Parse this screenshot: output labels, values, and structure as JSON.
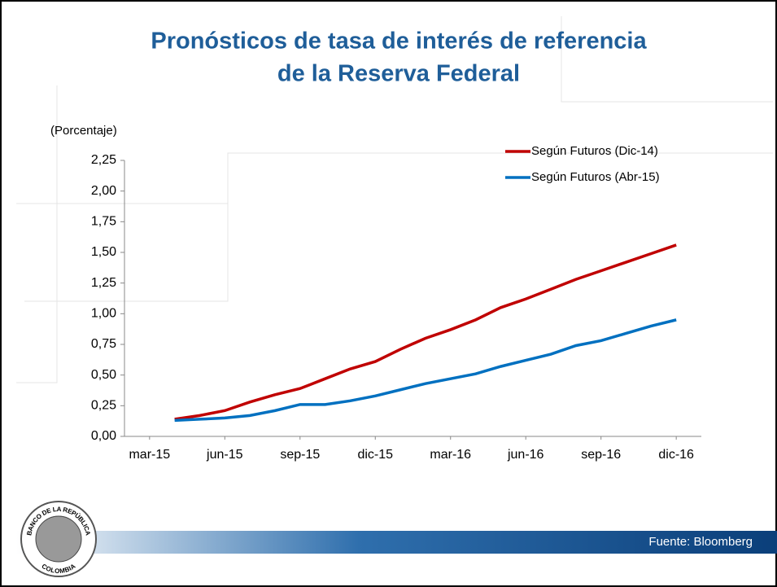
{
  "title_line1": "Pronósticos de tasa de interés de referencia",
  "title_line2": "de la Reserva Federal",
  "source": "Fuente: Bloomberg",
  "logo_top": "BANCO DE LA REPÚBLICA",
  "logo_bottom": "COLOMBIA",
  "chart_data": {
    "type": "line",
    "ylabel": "(Porcentaje)",
    "x": [
      "2015-04",
      "2015-05",
      "2015-06",
      "2015-07",
      "2015-08",
      "2015-09",
      "2015-10",
      "2015-11",
      "2015-12",
      "2016-01",
      "2016-02",
      "2016-03",
      "2016-04",
      "2016-05",
      "2016-06",
      "2016-07",
      "2016-08",
      "2016-09",
      "2016-10",
      "2016-11",
      "2016-12"
    ],
    "series": [
      {
        "name": "Según Futuros (Dic-14)",
        "color": "#c00000",
        "values": [
          0.14,
          0.17,
          0.21,
          0.28,
          0.34,
          0.39,
          0.47,
          0.55,
          0.61,
          0.71,
          0.8,
          0.87,
          0.95,
          1.05,
          1.12,
          1.2,
          1.28,
          1.35,
          1.42,
          1.49,
          1.56
        ]
      },
      {
        "name": "Según Futuros (Abr-15)",
        "color": "#0070c0",
        "values": [
          0.13,
          0.14,
          0.15,
          0.17,
          0.21,
          0.26,
          0.26,
          0.29,
          0.33,
          0.38,
          0.43,
          0.47,
          0.51,
          0.57,
          0.62,
          0.67,
          0.74,
          0.78,
          0.84,
          0.9,
          0.95
        ]
      }
    ],
    "xlim": [
      "2015-02",
      "2017-01"
    ],
    "xticks": [
      {
        "value": "2015-03",
        "label": "mar-15"
      },
      {
        "value": "2015-06",
        "label": "jun-15"
      },
      {
        "value": "2015-09",
        "label": "sep-15"
      },
      {
        "value": "2015-12",
        "label": "dic-15"
      },
      {
        "value": "2016-03",
        "label": "mar-16"
      },
      {
        "value": "2016-06",
        "label": "jun-16"
      },
      {
        "value": "2016-09",
        "label": "sep-16"
      },
      {
        "value": "2016-12",
        "label": "dic-16"
      }
    ],
    "ylim": [
      0,
      2.25
    ],
    "yticks": [
      {
        "value": 0,
        "label": "0,00"
      },
      {
        "value": 0.25,
        "label": "0,25"
      },
      {
        "value": 0.5,
        "label": "0,50"
      },
      {
        "value": 0.75,
        "label": "0,75"
      },
      {
        "value": 1,
        "label": "1,00"
      },
      {
        "value": 1.25,
        "label": "1,25"
      },
      {
        "value": 1.5,
        "label": "1,50"
      },
      {
        "value": 1.75,
        "label": "1,75"
      },
      {
        "value": 2,
        "label": "2,00"
      },
      {
        "value": 2.25,
        "label": "2,25"
      }
    ],
    "legend": "upper right",
    "grid": false
  }
}
